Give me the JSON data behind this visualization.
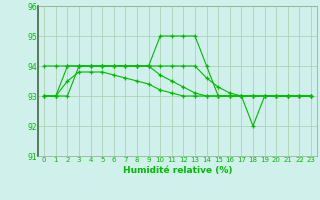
{
  "xlabel": "Humidité relative (%)",
  "background_color": "#cff0eb",
  "grid_color": "#aaccaa",
  "line_color": "#00bb00",
  "marker": "+",
  "ylim": [
    91,
    96
  ],
  "xlim": [
    -0.5,
    23.5
  ],
  "yticks": [
    91,
    92,
    93,
    94,
    95,
    96
  ],
  "xticks": [
    0,
    1,
    2,
    3,
    4,
    5,
    6,
    7,
    8,
    9,
    10,
    11,
    12,
    13,
    14,
    15,
    16,
    17,
    18,
    19,
    20,
    21,
    22,
    23
  ],
  "line1": [
    93,
    93,
    93,
    94,
    94,
    94,
    94,
    94,
    94,
    94,
    95,
    95,
    95,
    95,
    94,
    93,
    93,
    93,
    92,
    93,
    93,
    93,
    93,
    93
  ],
  "line2": [
    94,
    94,
    94,
    94,
    94,
    94,
    94,
    94,
    94,
    94,
    94,
    94,
    94,
    94,
    93.6,
    93.3,
    93.1,
    93,
    93,
    93,
    93,
    93,
    93,
    93
  ],
  "line3": [
    93,
    93,
    94,
    94,
    94,
    94,
    94,
    94,
    94,
    94,
    93.7,
    93.5,
    93.3,
    93.1,
    93,
    93,
    93,
    93,
    93,
    93,
    93,
    93,
    93,
    93
  ],
  "line4": [
    93,
    93,
    93.5,
    93.8,
    93.8,
    93.8,
    93.7,
    93.6,
    93.5,
    93.4,
    93.2,
    93.1,
    93,
    93,
    93,
    93,
    93,
    93,
    93,
    93,
    93,
    93,
    93,
    93
  ]
}
